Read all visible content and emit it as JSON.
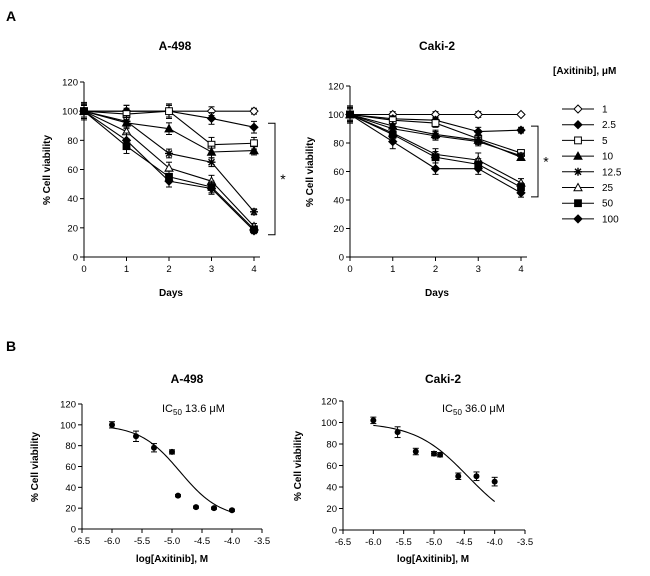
{
  "panel_labels": [
    "A",
    "B"
  ],
  "legend": {
    "title": "[Axitinib], μM",
    "entries": [
      {
        "label": "1",
        "marker": "diamond",
        "fill": "#ffffff"
      },
      {
        "label": "2.5",
        "marker": "diamond",
        "fill": "#000000"
      },
      {
        "label": "5",
        "marker": "square",
        "fill": "#ffffff"
      },
      {
        "label": "10",
        "marker": "triangle",
        "fill": "#000000"
      },
      {
        "label": "12.5",
        "marker": "star",
        "fill": "#000000"
      },
      {
        "label": "25",
        "marker": "triangle",
        "fill": "#ffffff"
      },
      {
        "label": "50",
        "marker": "square",
        "fill": "#000000"
      },
      {
        "label": "100",
        "marker": "diamond",
        "fill": "#000000"
      }
    ]
  },
  "chart_data": [
    {
      "id": "a498-time",
      "type": "line",
      "title": "A-498",
      "xlabel": "Days",
      "ylabel": "% Cell viability",
      "xlim": [
        0,
        4
      ],
      "ylim": [
        0,
        120
      ],
      "xticks": [
        "0",
        "1",
        "2",
        "3",
        "4"
      ],
      "yticks": [
        "0",
        "20",
        "40",
        "60",
        "80",
        "100",
        "120"
      ],
      "x": [
        0,
        1,
        2,
        3,
        4
      ],
      "significance": "*",
      "series": [
        {
          "name": "1",
          "values": [
            100,
            100,
            100,
            100,
            100
          ],
          "errors": [
            4,
            4,
            4,
            3,
            2
          ]
        },
        {
          "name": "2.5",
          "values": [
            100,
            100,
            100,
            95,
            89
          ],
          "errors": [
            4,
            4,
            4,
            4,
            4
          ]
        },
        {
          "name": "5",
          "values": [
            100,
            98,
            100,
            77,
            78
          ],
          "errors": [
            5,
            4,
            5,
            5,
            4
          ]
        },
        {
          "name": "10",
          "values": [
            100,
            92,
            88,
            72,
            73
          ],
          "errors": [
            4,
            4,
            4,
            4,
            3
          ]
        },
        {
          "name": "12.5",
          "values": [
            100,
            93,
            71,
            65,
            31
          ],
          "errors": [
            4,
            4,
            3,
            3,
            2
          ]
        },
        {
          "name": "25",
          "values": [
            100,
            86,
            61,
            52,
            21
          ],
          "errors": [
            6,
            5,
            4,
            4,
            2
          ]
        },
        {
          "name": "50",
          "values": [
            100,
            76,
            55,
            48,
            19
          ],
          "errors": [
            5,
            5,
            4,
            4,
            2
          ]
        },
        {
          "name": "100",
          "values": [
            100,
            80,
            52,
            47,
            18
          ],
          "errors": [
            5,
            5,
            4,
            4,
            2
          ]
        }
      ]
    },
    {
      "id": "caki2-time",
      "type": "line",
      "title": "Caki-2",
      "xlabel": "Days",
      "ylabel": "% Cell viability",
      "xlim": [
        0,
        4
      ],
      "ylim": [
        0,
        120
      ],
      "xticks": [
        "0",
        "1",
        "2",
        "3",
        "4"
      ],
      "yticks": [
        "0",
        "20",
        "40",
        "60",
        "80",
        "100",
        "120"
      ],
      "x": [
        0,
        1,
        2,
        3,
        4
      ],
      "significance": "*",
      "series": [
        {
          "name": "1",
          "values": [
            100,
            100,
            100,
            100,
            100
          ],
          "errors": [
            4,
            2,
            2,
            2,
            1
          ]
        },
        {
          "name": "2.5",
          "values": [
            100,
            97,
            96,
            88,
            89
          ],
          "errors": [
            4,
            2,
            2,
            3,
            2
          ]
        },
        {
          "name": "5",
          "values": [
            100,
            96,
            94,
            83,
            73
          ],
          "errors": [
            4,
            2,
            3,
            3,
            2
          ]
        },
        {
          "name": "10",
          "values": [
            100,
            92,
            86,
            82,
            70
          ],
          "errors": [
            5,
            3,
            3,
            3,
            2
          ]
        },
        {
          "name": "12.5",
          "values": [
            100,
            90,
            85,
            81,
            71
          ],
          "errors": [
            5,
            3,
            3,
            3,
            2
          ]
        },
        {
          "name": "25",
          "values": [
            100,
            87,
            72,
            68,
            52
          ],
          "errors": [
            6,
            4,
            4,
            5,
            3
          ]
        },
        {
          "name": "50",
          "values": [
            100,
            86,
            70,
            65,
            49
          ],
          "errors": [
            6,
            4,
            4,
            4,
            3
          ]
        },
        {
          "name": "100",
          "values": [
            100,
            81,
            62,
            62,
            45
          ],
          "errors": [
            6,
            5,
            4,
            4,
            3
          ]
        }
      ]
    },
    {
      "id": "a498-ic50",
      "type": "scatter",
      "title": "A-498",
      "xlabel": "log[Axitinib], M",
      "ylabel": "% Cell viability",
      "xlim": [
        -6.5,
        -3.5
      ],
      "ylim": [
        0,
        120
      ],
      "xticks": [
        "-6.5",
        "-6.0",
        "-5.5",
        "-5.0",
        "-4.5",
        "-4.0",
        "-3.5"
      ],
      "yticks": [
        "0",
        "20",
        "40",
        "60",
        "80",
        "100",
        "120"
      ],
      "annotation": {
        "prefix": "IC",
        "sub": "50",
        "value": " 13.6 μM"
      },
      "points": [
        {
          "x": -6.0,
          "y": 100,
          "err": 3
        },
        {
          "x": -5.6,
          "y": 89,
          "err": 5
        },
        {
          "x": -5.3,
          "y": 78,
          "err": 4
        },
        {
          "x": -5.0,
          "y": 74,
          "err": 2
        },
        {
          "x": -4.9,
          "y": 32,
          "err": 1
        },
        {
          "x": -4.6,
          "y": 21,
          "err": 1
        },
        {
          "x": -4.3,
          "y": 20,
          "err": 1
        },
        {
          "x": -4.0,
          "y": 18,
          "err": 1
        }
      ],
      "fit": {
        "top": 100,
        "bottom": 10,
        "logIC50": -4.866,
        "hill": 1.3,
        "from": -6.0,
        "to": -4.0
      }
    },
    {
      "id": "caki2-ic50",
      "type": "scatter",
      "title": "Caki-2",
      "xlabel": "log[Axitinib], M",
      "ylabel": "% Cell viability",
      "xlim": [
        -6.5,
        -3.5
      ],
      "ylim": [
        0,
        120
      ],
      "xticks": [
        "-6.5",
        "-6.0",
        "-5.5",
        "-5.0",
        "-4.5",
        "-4.0",
        "-3.5"
      ],
      "yticks": [
        "0",
        "20",
        "40",
        "60",
        "80",
        "100",
        "120"
      ],
      "annotation": {
        "prefix": "IC",
        "sub": "50",
        "value": " 36.0 μM"
      },
      "points": [
        {
          "x": -6.0,
          "y": 102,
          "err": 3
        },
        {
          "x": -5.6,
          "y": 91,
          "err": 5
        },
        {
          "x": -5.3,
          "y": 73,
          "err": 3
        },
        {
          "x": -5.0,
          "y": 71,
          "err": 2
        },
        {
          "x": -4.9,
          "y": 70,
          "err": 2
        },
        {
          "x": -4.6,
          "y": 50,
          "err": 3
        },
        {
          "x": -4.3,
          "y": 50,
          "err": 4
        },
        {
          "x": -4.0,
          "y": 45,
          "err": 4
        }
      ],
      "fit": {
        "top": 100,
        "bottom": 0,
        "logIC50": -4.444,
        "hill": 1.0,
        "from": -6.0,
        "to": -4.0
      }
    }
  ]
}
